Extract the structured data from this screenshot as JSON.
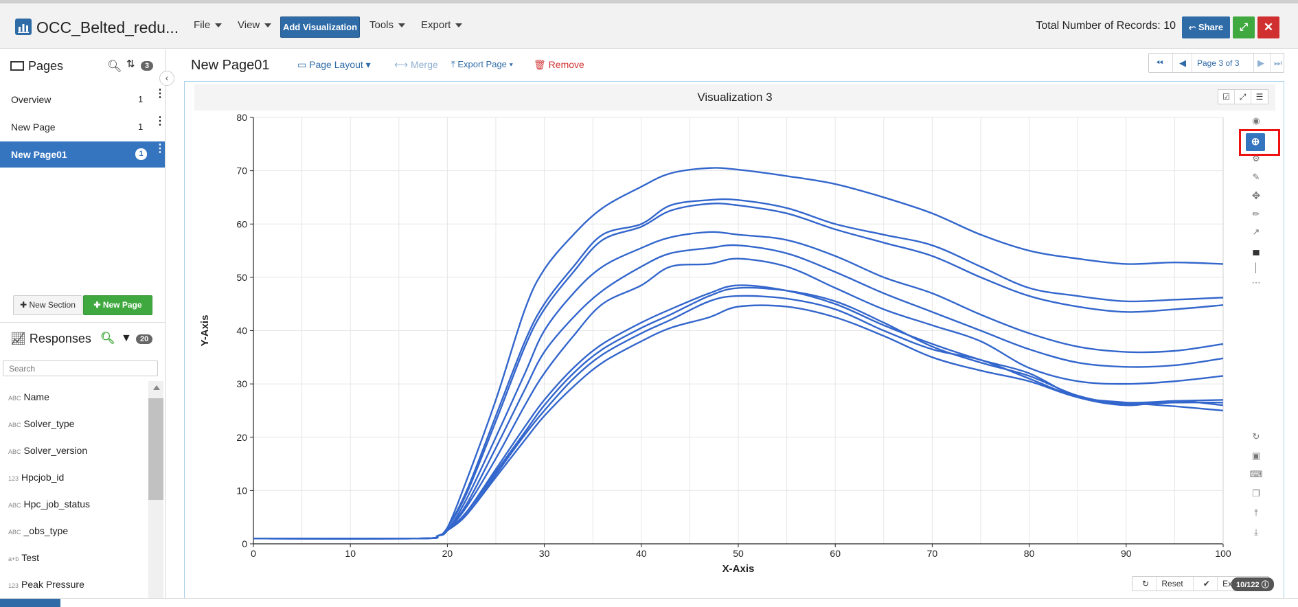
{
  "app": {
    "title": "OCC_Belted_redu...",
    "records_text": "Total Number of Records: 10"
  },
  "menu": {
    "file": "File",
    "view": "View",
    "add_visualization": "Add Visualization",
    "tools": "Tools",
    "export": "Export"
  },
  "header_buttons": {
    "share": "Share"
  },
  "sidebar": {
    "pages_title": "Pages",
    "pages_count": "3",
    "pages": [
      {
        "label": "Overview",
        "count": "1"
      },
      {
        "label": "New Page",
        "count": "1"
      },
      {
        "label": "New Page01",
        "count": "1"
      }
    ],
    "new_section": "New Section",
    "new_page": "New Page",
    "responses_title": "Responses",
    "responses_count": "20",
    "search_placeholder": "Search",
    "responses": [
      {
        "type": "ABC",
        "label": "Name"
      },
      {
        "type": "ABC",
        "label": "Solver_type"
      },
      {
        "type": "ABC",
        "label": "Solver_version"
      },
      {
        "type": "123",
        "label": "Hpcjob_id"
      },
      {
        "type": "ABC",
        "label": "Hpc_job_status"
      },
      {
        "type": "ABC",
        "label": "_obs_type"
      },
      {
        "type": "a+b",
        "label": "Test"
      },
      {
        "type": "123",
        "label": "Peak Pressure"
      }
    ]
  },
  "main": {
    "page_title": "New Page01",
    "page_layout": "Page Layout",
    "merge": "Merge",
    "export_page": "Export Page",
    "remove": "Remove",
    "pager_text": "Page 3 of 3"
  },
  "visualization": {
    "title": "Visualization 3",
    "reset": "Reset",
    "exit_zoom": "Exit zoom",
    "count": "10/122"
  },
  "chart_data": {
    "type": "line",
    "xlabel": "X-Axis",
    "ylabel": "Y-Axis",
    "xlim": [
      0,
      100
    ],
    "ylim": [
      0,
      80
    ],
    "xticks": [
      0,
      10,
      20,
      30,
      40,
      50,
      60,
      70,
      80,
      90,
      100
    ],
    "yticks": [
      0,
      10,
      20,
      30,
      40,
      50,
      60,
      70,
      80
    ],
    "grid": true,
    "color": "#3366cc",
    "x": [
      0,
      17,
      19,
      20,
      22,
      25,
      28,
      30,
      33,
      36,
      40,
      43,
      47,
      50,
      55,
      60,
      65,
      70,
      75,
      80,
      85,
      90,
      95,
      100
    ],
    "series": [
      {
        "values": [
          1,
          1,
          1.5,
          3,
          12,
          27,
          44,
          51.5,
          58,
          63,
          67,
          69.5,
          70.5,
          70.2,
          69,
          67.5,
          65,
          62,
          58,
          55,
          53.5,
          52.5,
          52.8,
          52.5
        ]
      },
      {
        "values": [
          1,
          1,
          1.5,
          3,
          10,
          24,
          38,
          45,
          52,
          58,
          60,
          63.5,
          64.5,
          64.5,
          63,
          60,
          58,
          56,
          52,
          48,
          46.5,
          45.5,
          45.8,
          46.2
        ]
      },
      {
        "values": [
          1,
          1,
          1.5,
          3,
          9.5,
          23,
          37,
          44,
          51,
          57,
          59.5,
          62.5,
          63.8,
          63.5,
          62,
          59,
          56.5,
          54,
          50,
          46.5,
          44.5,
          43.5,
          44,
          44.8
        ]
      },
      {
        "values": [
          1,
          1,
          1.5,
          2.5,
          8.5,
          20,
          32,
          40,
          47,
          52,
          55.5,
          57.5,
          58.5,
          58,
          57,
          54,
          50,
          47,
          43,
          39.5,
          37,
          36,
          36.2,
          37.5
        ]
      },
      {
        "values": [
          1,
          1,
          1.5,
          2.5,
          7.5,
          18,
          29,
          36,
          42.5,
          47.5,
          52,
          54.5,
          55.5,
          56,
          54.5,
          51,
          47,
          43.5,
          40,
          36.5,
          34,
          33.2,
          33.5,
          34.8
        ]
      },
      {
        "values": [
          1,
          1,
          1.5,
          2.5,
          7,
          16,
          26,
          32,
          39,
          45,
          48.5,
          52,
          52.5,
          53.5,
          52,
          48,
          44,
          41,
          38,
          33,
          30.5,
          30,
          30.5,
          31.5
        ]
      },
      {
        "values": [
          1,
          1,
          1.5,
          2.5,
          6,
          14,
          22,
          27,
          33,
          37.5,
          41.5,
          44,
          47,
          48.5,
          47.5,
          45,
          41,
          37.5,
          34.5,
          32,
          27.5,
          26.5,
          26.8,
          27
        ]
      },
      {
        "values": [
          1,
          1,
          1.5,
          2.5,
          6,
          13.5,
          21,
          26,
          32,
          36.5,
          40.5,
          43,
          46.5,
          48,
          47.5,
          45.5,
          41.5,
          37,
          34,
          31.5,
          27.8,
          26.2,
          26.5,
          26.5
        ]
      },
      {
        "values": [
          1,
          1,
          1.5,
          2.5,
          5.5,
          13,
          20.5,
          25,
          31,
          35.5,
          39.5,
          42,
          45.5,
          46.5,
          46,
          44,
          40,
          36.5,
          34.5,
          31,
          27.5,
          26,
          26.8,
          26
        ]
      },
      {
        "values": [
          1,
          1,
          1.5,
          2.5,
          5.5,
          12.5,
          19.5,
          24,
          29.5,
          34,
          38,
          40.5,
          42.5,
          44.5,
          44.5,
          42.5,
          39,
          35,
          32.5,
          30.5,
          27.5,
          26.5,
          25.8,
          25
        ]
      }
    ]
  }
}
